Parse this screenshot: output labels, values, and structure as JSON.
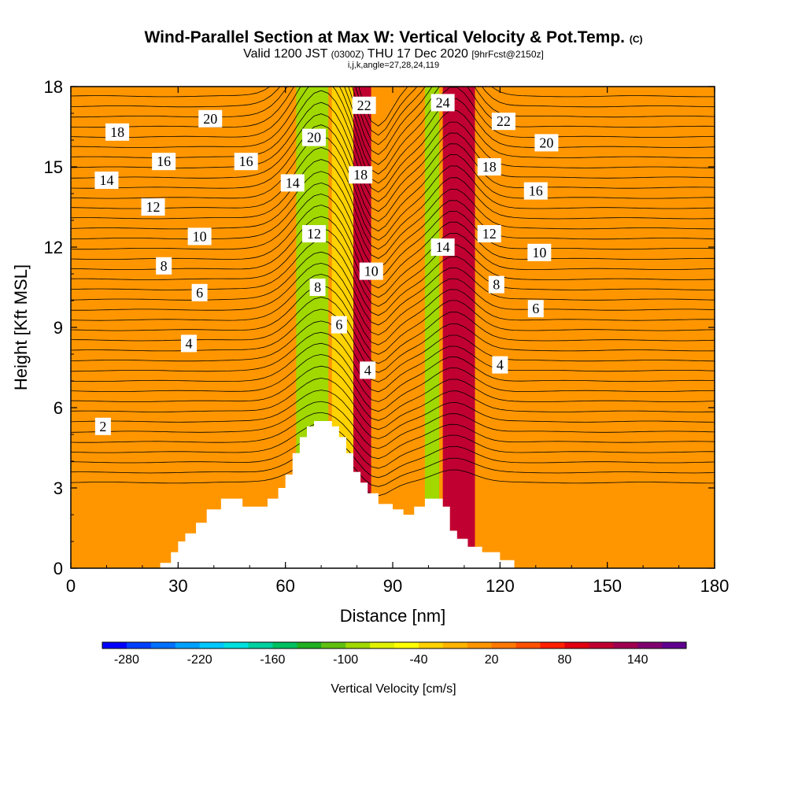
{
  "header": {
    "title": "Wind-Parallel Section at Max W: Vertical Velocity & Pot.Temp.",
    "title_suffix": "(C)",
    "valid_prefix": "Valid 1200 JST",
    "valid_utc": "(0300Z)",
    "valid_date": "THU 17 Dec 2020",
    "forecast": "[9hrFcst@2150z]",
    "indices": "i,j,k,angle=27,28,24,119"
  },
  "chart_data": {
    "type": "heatmap",
    "title": "Wind-Parallel Section at Max W: Vertical Velocity & Pot.Temp.",
    "xlabel": "Distance [nm]",
    "ylabel": "Height [Kft MSL]",
    "xlim": [
      0,
      180
    ],
    "ylim": [
      0,
      18
    ],
    "x_ticks": [
      "0",
      "30",
      "60",
      "90",
      "120",
      "150",
      "180"
    ],
    "y_ticks": [
      "0",
      "3",
      "6",
      "9",
      "12",
      "15",
      "18"
    ],
    "colorbar": {
      "label": "Vertical Velocity [cm/s]",
      "ticks": [
        "-280",
        "-220",
        "-160",
        "-100",
        "-40",
        "20",
        "80",
        "140"
      ],
      "colors": [
        "#0000ff",
        "#0040ff",
        "#0070ff",
        "#00a0ff",
        "#00c8ff",
        "#00e0e0",
        "#00d0a0",
        "#00c060",
        "#20b020",
        "#60c010",
        "#a0d800",
        "#e0f000",
        "#ffff00",
        "#ffd200",
        "#ffb400",
        "#ff9600",
        "#ff7800",
        "#ff5000",
        "#ff2000",
        "#e00010",
        "#c00030",
        "#a00050",
        "#800070",
        "#600090"
      ]
    },
    "velocity_bands": [
      {
        "x_start": 0,
        "x_end": 62,
        "value": 10
      },
      {
        "x_start": 63,
        "x_end": 72,
        "value": -100
      },
      {
        "x_start": 73,
        "x_end": 79,
        "value": -40
      },
      {
        "x_start": 79,
        "x_end": 84,
        "value": 100
      },
      {
        "x_start": 84,
        "x_end": 99,
        "value": 0
      },
      {
        "x_start": 99,
        "x_end": 103,
        "value": -90
      },
      {
        "x_start": 104,
        "x_end": 113,
        "value": 100
      },
      {
        "x_start": 113,
        "x_end": 180,
        "value": 10
      }
    ],
    "terrain": [
      [
        0,
        0
      ],
      [
        25,
        0
      ],
      [
        25,
        0.2
      ],
      [
        28,
        0.2
      ],
      [
        28,
        0.6
      ],
      [
        30,
        0.6
      ],
      [
        30,
        1.0
      ],
      [
        32,
        1.0
      ],
      [
        32,
        1.3
      ],
      [
        35,
        1.3
      ],
      [
        35,
        1.7
      ],
      [
        38,
        1.7
      ],
      [
        38,
        2.2
      ],
      [
        42,
        2.2
      ],
      [
        42,
        2.6
      ],
      [
        48,
        2.6
      ],
      [
        48,
        2.3
      ],
      [
        55,
        2.3
      ],
      [
        55,
        2.6
      ],
      [
        58,
        2.6
      ],
      [
        58,
        3.0
      ],
      [
        60,
        3.0
      ],
      [
        60,
        3.5
      ],
      [
        62,
        3.5
      ],
      [
        62,
        4.3
      ],
      [
        64,
        4.3
      ],
      [
        64,
        4.9
      ],
      [
        66,
        4.9
      ],
      [
        66,
        5.3
      ],
      [
        68,
        5.3
      ],
      [
        68,
        5.5
      ],
      [
        73,
        5.5
      ],
      [
        73,
        5.3
      ],
      [
        75,
        5.3
      ],
      [
        75,
        4.9
      ],
      [
        77,
        4.9
      ],
      [
        77,
        4.3
      ],
      [
        79,
        4.3
      ],
      [
        79,
        3.6
      ],
      [
        81,
        3.6
      ],
      [
        81,
        3.2
      ],
      [
        83,
        3.2
      ],
      [
        83,
        2.8
      ],
      [
        86,
        2.8
      ],
      [
        86,
        2.4
      ],
      [
        90,
        2.4
      ],
      [
        90,
        2.2
      ],
      [
        93,
        2.2
      ],
      [
        93,
        2.0
      ],
      [
        96,
        2.0
      ],
      [
        96,
        2.3
      ],
      [
        99,
        2.3
      ],
      [
        99,
        2.6
      ],
      [
        104,
        2.6
      ],
      [
        104,
        2.3
      ],
      [
        106,
        2.3
      ],
      [
        106,
        1.4
      ],
      [
        108,
        1.4
      ],
      [
        108,
        1.1
      ],
      [
        111,
        1.1
      ],
      [
        111,
        0.8
      ],
      [
        115,
        0.8
      ],
      [
        115,
        0.6
      ],
      [
        120,
        0.6
      ],
      [
        120,
        0.3
      ],
      [
        124,
        0.3
      ],
      [
        124,
        0
      ]
    ],
    "contour_labels": [
      {
        "text": "2",
        "x": 9,
        "y": 5.3
      },
      {
        "text": "4",
        "x": 33,
        "y": 8.4
      },
      {
        "text": "6",
        "x": 36,
        "y": 10.3
      },
      {
        "text": "8",
        "x": 26,
        "y": 11.3
      },
      {
        "text": "10",
        "x": 36,
        "y": 12.4
      },
      {
        "text": "12",
        "x": 23,
        "y": 13.5
      },
      {
        "text": "14",
        "x": 10,
        "y": 14.5
      },
      {
        "text": "16",
        "x": 26,
        "y": 15.2
      },
      {
        "text": "16",
        "x": 49,
        "y": 15.2
      },
      {
        "text": "18",
        "x": 13,
        "y": 16.3
      },
      {
        "text": "20",
        "x": 39,
        "y": 16.8
      },
      {
        "text": "20",
        "x": 68,
        "y": 16.1
      },
      {
        "text": "14",
        "x": 62,
        "y": 14.4
      },
      {
        "text": "12",
        "x": 68,
        "y": 12.5
      },
      {
        "text": "8",
        "x": 69,
        "y": 10.5
      },
      {
        "text": "6",
        "x": 75,
        "y": 9.1
      },
      {
        "text": "4",
        "x": 83,
        "y": 7.4
      },
      {
        "text": "10",
        "x": 84,
        "y": 11.1
      },
      {
        "text": "18",
        "x": 81,
        "y": 14.7
      },
      {
        "text": "22",
        "x": 82,
        "y": 17.3
      },
      {
        "text": "24",
        "x": 104,
        "y": 17.4
      },
      {
        "text": "14",
        "x": 104,
        "y": 12.0
      },
      {
        "text": "22",
        "x": 121,
        "y": 16.7
      },
      {
        "text": "18",
        "x": 117,
        "y": 15.0
      },
      {
        "text": "12",
        "x": 117,
        "y": 12.5
      },
      {
        "text": "8",
        "x": 119,
        "y": 10.6
      },
      {
        "text": "4",
        "x": 120,
        "y": 7.6
      },
      {
        "text": "20",
        "x": 133,
        "y": 15.9
      },
      {
        "text": "16",
        "x": 130,
        "y": 14.1
      },
      {
        "text": "10",
        "x": 131,
        "y": 11.8
      },
      {
        "text": "6",
        "x": 130,
        "y": 9.7
      }
    ]
  }
}
